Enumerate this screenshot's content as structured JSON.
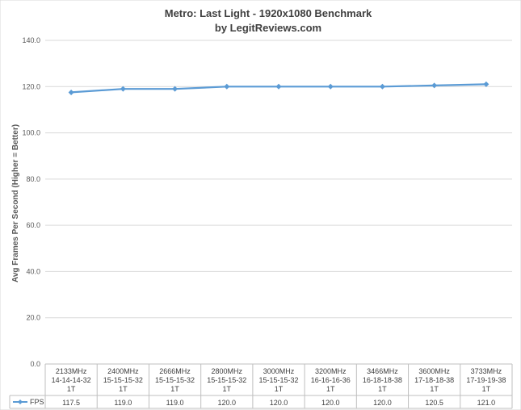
{
  "chart_data": {
    "type": "line",
    "title": "Metro: Last Light - 1920x1080 Benchmark",
    "subtitle": "by LegitReviews.com",
    "ylabel": "Avg Frames Per Second (Higher = Better)",
    "xlabel": "",
    "ylim": [
      0,
      140
    ],
    "yticks": [
      "0.0",
      "20.0",
      "40.0",
      "60.0",
      "80.0",
      "100.0",
      "120.0",
      "140.0"
    ],
    "grid": true,
    "legend_position": "data-table-left",
    "categories": [
      [
        "2133MHz",
        "14-14-14-32",
        "1T"
      ],
      [
        "2400MHz",
        "15-15-15-32",
        "1T"
      ],
      [
        "2666MHz",
        "15-15-15-32",
        "1T"
      ],
      [
        "2800MHz",
        "15-15-15-32",
        "1T"
      ],
      [
        "3000MHz",
        "15-15-15-32",
        "1T"
      ],
      [
        "3200MHz",
        "16-16-16-36",
        "1T"
      ],
      [
        "3466MHz",
        "16-18-18-38",
        "1T"
      ],
      [
        "3600MHz",
        "17-18-18-38",
        "1T"
      ],
      [
        "3733MHz",
        "17-19-19-38",
        "1T"
      ]
    ],
    "series": [
      {
        "name": "FPS",
        "values": [
          117.5,
          119.0,
          119.0,
          120.0,
          120.0,
          120.0,
          120.0,
          120.5,
          121.0
        ],
        "labels": [
          "117.5",
          "119.0",
          "119.0",
          "120.0",
          "120.0",
          "120.0",
          "120.0",
          "120.5",
          "121.0"
        ],
        "color": "#5b9bd5"
      }
    ]
  }
}
